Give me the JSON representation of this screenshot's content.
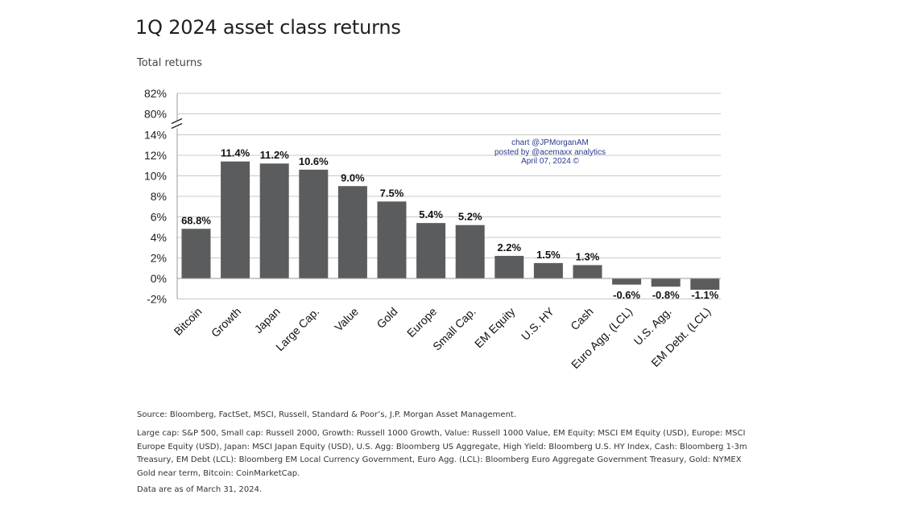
{
  "title": "1Q 2024 asset class returns",
  "subtitle": "Total returns",
  "watermark": [
    "chart @JPMorganAM",
    "posted by @acemaxx analytics",
    "April 07, 2024 ©"
  ],
  "notes": {
    "source": "Source: Bloomberg, FactSet, MSCI, Russell, Standard & Poor’s, J.P. Morgan Asset Management.",
    "definitions": "Large cap: S&P 500, Small cap: Russell 2000, Growth: Russell 1000 Growth, Value: Russell 1000 Value, EM Equity: MSCI EM Equity (USD), Europe: MSCI Europe Equity (USD), Japan: MSCI Japan Equity (USD), U.S. Agg: Bloomberg US Aggregate, High Yield: Bloomberg U.S. HY Index, Cash: Bloomberg 1-3m Treasury, EM Debt (LCL): Bloomberg EM Local Currency Government, Euro Agg. (LCL): Bloomberg Euro Aggregate Government Treasury, Gold: NYMEX Gold near term, Bitcoin: CoinMarketCap.",
    "date": "Data are as of March 31, 2024."
  },
  "colors": {
    "bar": "#5b5c5e",
    "grid": "#c8c8c8",
    "watermark": "#2b3a8c"
  },
  "chart_data": {
    "type": "bar",
    "categories": [
      "Bitcoin",
      "Growth",
      "Japan",
      "Large Cap.",
      "Value",
      "Gold",
      "Europe",
      "Small Cap.",
      "EM Equity",
      "U.S. HY",
      "Cash",
      "Euro Agg. (LCL)",
      "U.S. Agg.",
      "EM Debt. (LCL)"
    ],
    "values": [
      68.8,
      11.4,
      11.2,
      10.6,
      9.0,
      7.5,
      5.4,
      5.2,
      2.2,
      1.5,
      1.3,
      -0.6,
      -0.8,
      -1.1
    ],
    "data_labels": [
      "68.8%",
      "11.4%",
      "11.2%",
      "10.6%",
      "9.0%",
      "7.5%",
      "5.4%",
      "5.2%",
      "2.2%",
      "1.5%",
      "1.3%",
      "-0.6%",
      "-0.8%",
      "-1.1%"
    ],
    "ylim": [
      -2,
      82
    ],
    "axis_break": [
      14,
      80
    ],
    "y_ticks": [
      -2,
      0,
      2,
      4,
      6,
      8,
      10,
      12,
      14,
      80,
      82
    ],
    "y_tick_labels": [
      "-2%",
      "0%",
      "2%",
      "4%",
      "6%",
      "8%",
      "10%",
      "12%",
      "14%",
      "80%",
      "82%"
    ],
    "grid": true,
    "legend": "none"
  }
}
